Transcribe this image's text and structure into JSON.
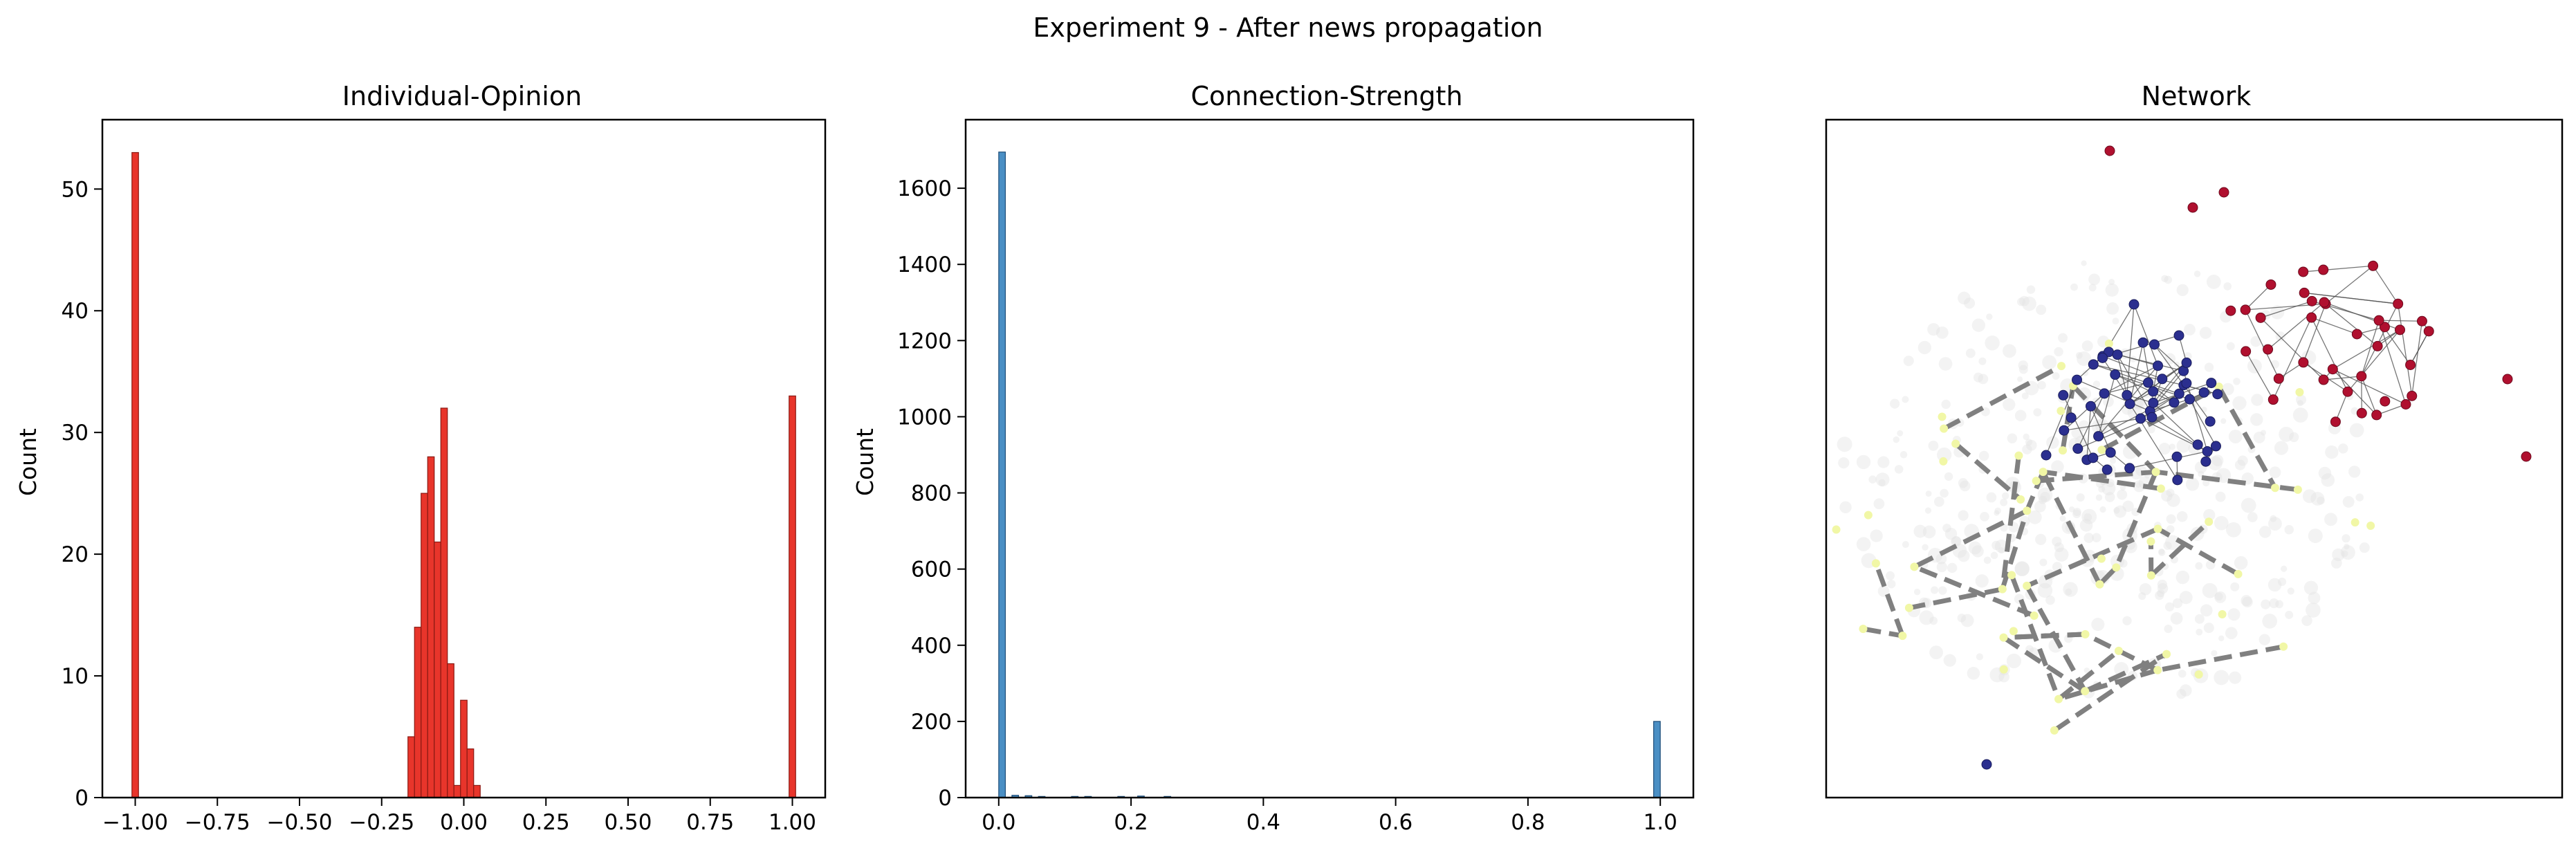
{
  "figure": {
    "suptitle": "Experiment 9 - After news propagation"
  },
  "chart_data": [
    {
      "type": "bar",
      "title": "Individual-Opinion",
      "xlabel": "",
      "ylabel": "Count",
      "xlim": [
        -1.1,
        1.1
      ],
      "ylim": [
        0,
        55.7
      ],
      "xticks": [
        -1.0,
        -0.75,
        -0.5,
        -0.25,
        0.0,
        0.25,
        0.5,
        0.75,
        1.0
      ],
      "xtick_labels": [
        "−1.00",
        "−0.75",
        "−0.50",
        "−0.25",
        "0.00",
        "0.25",
        "0.50",
        "0.75",
        "1.00"
      ],
      "yticks": [
        0,
        10,
        20,
        30,
        40,
        50
      ],
      "ytick_labels": [
        "0",
        "10",
        "20",
        "30",
        "40",
        "50"
      ],
      "bin_width": 0.02,
      "color": "#e8352b",
      "edge_color": "#8a1a14",
      "bins": [
        {
          "x0": -1.01,
          "count": 53
        },
        {
          "x0": -0.17,
          "count": 5
        },
        {
          "x0": -0.15,
          "count": 14
        },
        {
          "x0": -0.13,
          "count": 25
        },
        {
          "x0": -0.11,
          "count": 28
        },
        {
          "x0": -0.09,
          "count": 21
        },
        {
          "x0": -0.07,
          "count": 32
        },
        {
          "x0": -0.05,
          "count": 11
        },
        {
          "x0": -0.03,
          "count": 1
        },
        {
          "x0": -0.01,
          "count": 8
        },
        {
          "x0": 0.01,
          "count": 4
        },
        {
          "x0": 0.03,
          "count": 1
        },
        {
          "x0": 0.99,
          "count": 33
        }
      ]
    },
    {
      "type": "bar",
      "title": "Connection-Strength",
      "xlabel": "",
      "ylabel": "Count",
      "xlim": [
        -0.05,
        1.05
      ],
      "ylim": [
        0,
        1780
      ],
      "xticks": [
        0.0,
        0.2,
        0.4,
        0.6,
        0.8,
        1.0
      ],
      "xtick_labels": [
        "0.0",
        "0.2",
        "0.4",
        "0.6",
        "0.8",
        "1.0"
      ],
      "yticks": [
        0,
        200,
        400,
        600,
        800,
        1000,
        1200,
        1400,
        1600
      ],
      "ytick_labels": [
        "0",
        "200",
        "400",
        "600",
        "800",
        "1000",
        "1200",
        "1400",
        "1600"
      ],
      "bin_width": 0.01,
      "color": "#4a8fc4",
      "edge_color": "#1f4e79",
      "bins": [
        {
          "x0": 0.0,
          "count": 1695
        },
        {
          "x0": 0.02,
          "count": 6
        },
        {
          "x0": 0.04,
          "count": 5
        },
        {
          "x0": 0.06,
          "count": 3
        },
        {
          "x0": 0.11,
          "count": 3
        },
        {
          "x0": 0.13,
          "count": 3
        },
        {
          "x0": 0.18,
          "count": 3
        },
        {
          "x0": 0.21,
          "count": 4
        },
        {
          "x0": 0.25,
          "count": 3
        },
        {
          "x0": 0.99,
          "count": 200
        }
      ]
    },
    {
      "type": "network",
      "title": "Network",
      "clusters": [
        {
          "name": "",
          "color": "#b0102f"
        },
        {
          "name": "",
          "color": "#2b2f8f"
        },
        {
          "name": "",
          "color": "#f1f7a6"
        }
      ]
    }
  ]
}
